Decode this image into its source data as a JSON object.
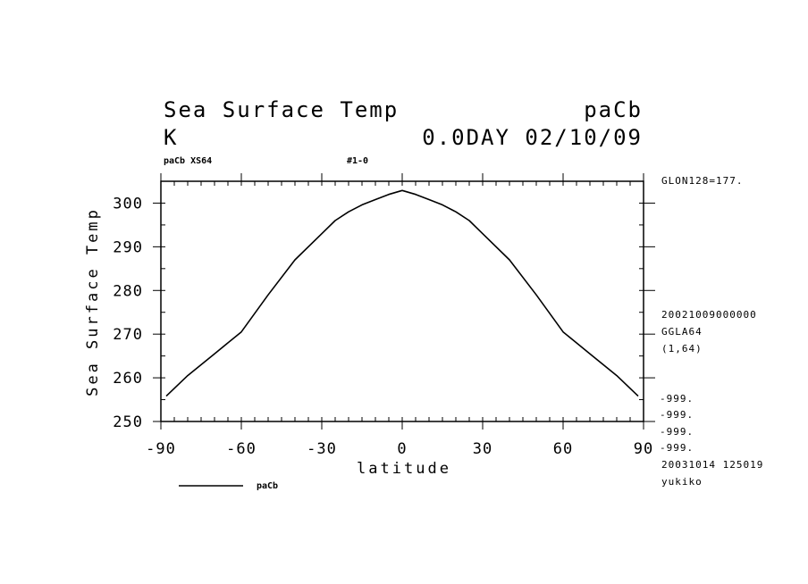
{
  "header": {
    "title": "Sea Surface Temp",
    "title_right": "paCb",
    "units": "K",
    "date_line": "0.0DAY 02/10/09",
    "sub_left": "paCb XS64",
    "sub_mid": "#1-0"
  },
  "right_notes": {
    "glon": "GLON128=177.",
    "stamp": "20021009000000",
    "grid": "GGLA64",
    "range": "(1,64)",
    "missing": [
      "-999.",
      "-999.",
      "-999.",
      "-999."
    ],
    "created": "20031014 125019",
    "user": "yukiko"
  },
  "chart_data": {
    "type": "line",
    "xlabel": "latitude",
    "ylabel": "Sea Surface Temp",
    "xlim": [
      -90,
      90
    ],
    "ylim": [
      250,
      305
    ],
    "xticks": [
      "-90",
      "-60",
      "-30",
      "0",
      "30",
      "60",
      "90"
    ],
    "yticks": [
      "250",
      "260",
      "270",
      "280",
      "290",
      "300"
    ],
    "legend": "bottom-left",
    "series": [
      {
        "name": "paCb",
        "color": "#000000",
        "x": [
          -88,
          -80,
          -70,
          -60,
          -50,
          -40,
          -30,
          -25,
          -20,
          -15,
          -10,
          -5,
          0,
          5,
          10,
          15,
          20,
          25,
          30,
          40,
          50,
          60,
          70,
          80,
          88
        ],
        "y": [
          255.8,
          260.5,
          265.5,
          270.5,
          279.0,
          287.0,
          293.0,
          296.0,
          298.0,
          299.6,
          300.8,
          302.0,
          302.9,
          302.0,
          300.8,
          299.6,
          298.0,
          296.0,
          293.0,
          287.0,
          279.0,
          270.5,
          265.5,
          260.5,
          255.8
        ]
      }
    ]
  }
}
